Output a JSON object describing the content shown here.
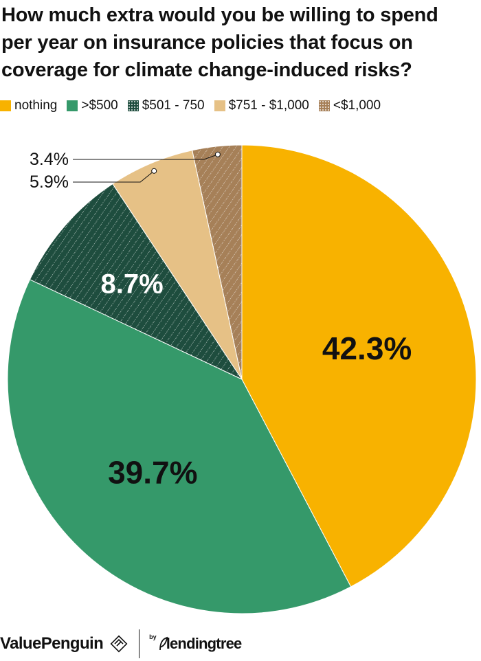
{
  "title_lines": [
    "How much extra would you be willing to spend",
    "per year on insurance policies that focus on",
    "coverage for climate change-induced risks?"
  ],
  "legend": [
    {
      "label": "nothing",
      "color": "#F8B200",
      "pattern": "none"
    },
    {
      "label": ">$500",
      "color": "#35996A",
      "pattern": "none"
    },
    {
      "label": "$501 - 750",
      "color": "#1E4D3E",
      "pattern": "dots"
    },
    {
      "label": "$751 - $1,000",
      "color": "#E6C186",
      "pattern": "none"
    },
    {
      "label": "<$1,000",
      "color": "#A68058",
      "pattern": "dots"
    }
  ],
  "chart_data": {
    "type": "pie",
    "start": "12 o'clock",
    "direction": "clockwise",
    "slices": [
      {
        "label": "nothing",
        "value": 42.3,
        "display": "42.3%",
        "color": "#F8B200",
        "pattern": "none",
        "label_style": "inside",
        "label_color": "#111111"
      },
      {
        "label": ">$500",
        "value": 39.7,
        "display": "39.7%",
        "color": "#35996A",
        "pattern": "none",
        "label_style": "inside",
        "label_color": "#111111"
      },
      {
        "label": "$501 - 750",
        "value": 8.7,
        "display": "8.7%",
        "color": "#1E4D3E",
        "pattern": "dots",
        "label_style": "inside",
        "label_color": "#ffffff"
      },
      {
        "label": "$751 - $1,000",
        "value": 5.9,
        "display": "5.9%",
        "color": "#E6C186",
        "pattern": "none",
        "label_style": "callout",
        "label_color": "#111111"
      },
      {
        "label": "<$1,000",
        "value": 3.4,
        "display": "3.4%",
        "color": "#A68058",
        "pattern": "dots",
        "label_style": "callout",
        "label_color": "#111111"
      }
    ]
  },
  "footer": {
    "brand": "ValuePenguin",
    "by": "by",
    "partner": "lendingtree"
  }
}
